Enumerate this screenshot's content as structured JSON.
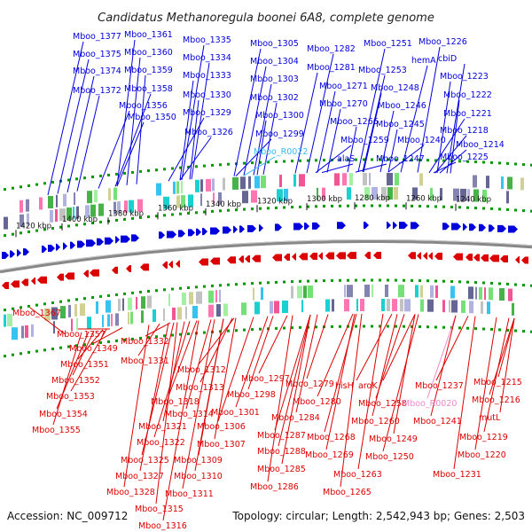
{
  "title": "Candidatus Methanoregula boonei 6A8, complete genome",
  "accession": "Accession: NC_009712",
  "topology": "Topology: circular; Length: 2,542,943 bp; Genes: 2,503",
  "colors": {
    "forward": "#0000dd",
    "reverse": "#dd0000",
    "rna_forward": "#33bbee",
    "rna_reverse": "#ee88cc",
    "backbone": "#888888",
    "dots": "#009900"
  },
  "ticks": [
    {
      "label": "1420 kbp"
    },
    {
      "label": "1400 kbp"
    },
    {
      "label": "1380 kbp"
    },
    {
      "label": "1360 kbp"
    },
    {
      "label": "1340 kbp"
    },
    {
      "label": "1320 kbp"
    },
    {
      "label": "1300 kbp"
    },
    {
      "label": "1280 kbp"
    },
    {
      "label": "1260 kbp"
    },
    {
      "label": "1240 kbp"
    }
  ],
  "forward_labels": [
    {
      "text": "Mboo_1377"
    },
    {
      "text": "Mboo_1375"
    },
    {
      "text": "Mboo_1374"
    },
    {
      "text": "Mboo_1372"
    },
    {
      "text": "Mboo_1361"
    },
    {
      "text": "Mboo_1360"
    },
    {
      "text": "Mboo_1359"
    },
    {
      "text": "Mboo_1358"
    },
    {
      "text": "Mboo_1356"
    },
    {
      "text": "Mboo_1350"
    },
    {
      "text": "Mboo_1335"
    },
    {
      "text": "Mboo_1334"
    },
    {
      "text": "Mboo_1333"
    },
    {
      "text": "Mboo_1330"
    },
    {
      "text": "Mboo_1329"
    },
    {
      "text": "Mboo_1326"
    },
    {
      "text": "Mboo_1305"
    },
    {
      "text": "Mboo_1304"
    },
    {
      "text": "Mboo_1303"
    },
    {
      "text": "Mboo_1302"
    },
    {
      "text": "Mboo_1300"
    },
    {
      "text": "Mboo_1299"
    },
    {
      "text": "Mboo_R0022"
    },
    {
      "text": "Mboo_1282"
    },
    {
      "text": "Mboo_1281"
    },
    {
      "text": "Mboo_1271"
    },
    {
      "text": "Mboo_1270"
    },
    {
      "text": "Mboo_1266"
    },
    {
      "text": "Mboo_1259"
    },
    {
      "text": "alaS"
    },
    {
      "text": "Mboo_1251"
    },
    {
      "text": "Mboo_1253"
    },
    {
      "text": "Mboo_1248"
    },
    {
      "text": "Mboo_1246"
    },
    {
      "text": "Mboo_1245"
    },
    {
      "text": "Mboo_1240"
    },
    {
      "text": "Mboo_1247"
    },
    {
      "text": "hemA"
    },
    {
      "text": "Mboo_1226"
    },
    {
      "text": "cbiD"
    },
    {
      "text": "Mboo_1223"
    },
    {
      "text": "Mboo_1222"
    },
    {
      "text": "Mboo_1221"
    },
    {
      "text": "Mboo_1218"
    },
    {
      "text": "Mboo_1214"
    },
    {
      "text": "Mboo_1225"
    }
  ],
  "reverse_labels": [
    {
      "text": "Mboo_1367"
    },
    {
      "text": "Mboo_1357"
    },
    {
      "text": "Mboo_1349"
    },
    {
      "text": "Mboo_1351"
    },
    {
      "text": "Mboo_1352"
    },
    {
      "text": "Mboo_1353"
    },
    {
      "text": "Mboo_1354"
    },
    {
      "text": "Mboo_1355"
    },
    {
      "text": "Mboo_1332"
    },
    {
      "text": "Mboo_1331"
    },
    {
      "text": "Mboo_1312"
    },
    {
      "text": "Mboo_1313"
    },
    {
      "text": "Mboo_1318"
    },
    {
      "text": "Mboo_1314"
    },
    {
      "text": "Mboo_1321"
    },
    {
      "text": "Mboo_1322"
    },
    {
      "text": "Mboo_1325"
    },
    {
      "text": "Mboo_1327"
    },
    {
      "text": "Mboo_1328"
    },
    {
      "text": "Mboo_1315"
    },
    {
      "text": "Mboo_1316"
    },
    {
      "text": "Mboo_1311"
    },
    {
      "text": "Mboo_1310"
    },
    {
      "text": "Mboo_1309"
    },
    {
      "text": "Mboo_1307"
    },
    {
      "text": "Mboo_1306"
    },
    {
      "text": "Mboo_1301"
    },
    {
      "text": "Mboo_1297"
    },
    {
      "text": "Mboo_1298"
    },
    {
      "text": "Mboo_1284"
    },
    {
      "text": "Mboo_1287"
    },
    {
      "text": "Mboo_1288"
    },
    {
      "text": "Mboo_1285"
    },
    {
      "text": "Mboo_1286"
    },
    {
      "text": "Mboo_1279"
    },
    {
      "text": "Mboo_1280"
    },
    {
      "text": "Mboo_1268"
    },
    {
      "text": "Mboo_1269"
    },
    {
      "text": "Mboo_1263"
    },
    {
      "text": "Mboo_1265"
    },
    {
      "text": "hisH"
    },
    {
      "text": "aroK"
    },
    {
      "text": "Mboo_1258"
    },
    {
      "text": "Mboo_1260"
    },
    {
      "text": "Mboo_1249"
    },
    {
      "text": "Mboo_1250"
    },
    {
      "text": "Mboo_1237"
    },
    {
      "text": "Mboo_R0020"
    },
    {
      "text": "Mboo_1241"
    },
    {
      "text": "Mboo_1231"
    },
    {
      "text": "Mboo_1215"
    },
    {
      "text": "Mboo_1216"
    },
    {
      "text": "mutL"
    },
    {
      "text": "Mboo_1219"
    },
    {
      "text": "Mboo_1220"
    }
  ]
}
